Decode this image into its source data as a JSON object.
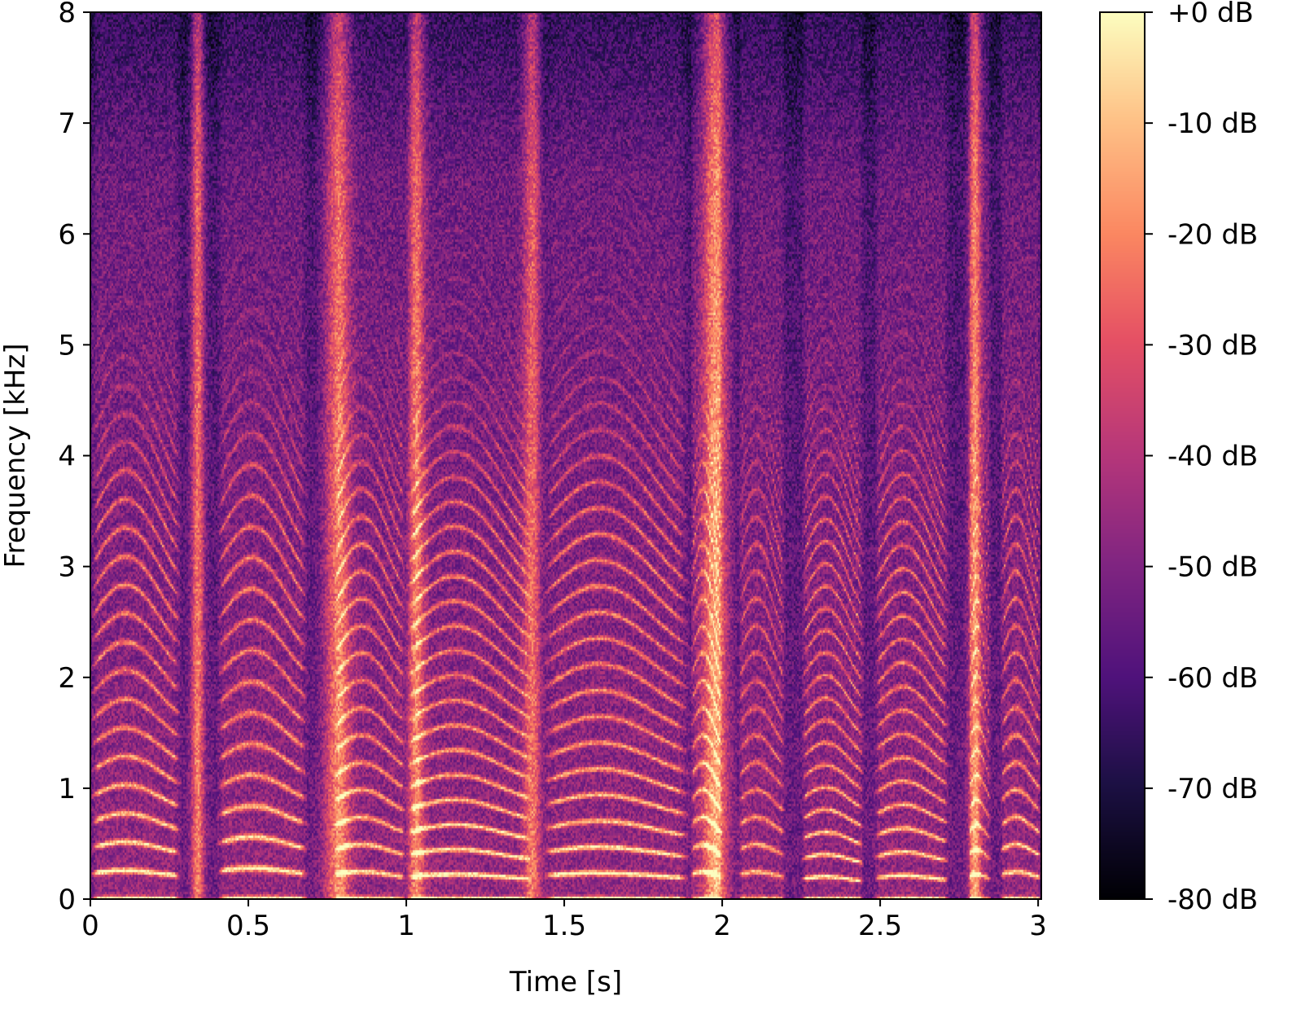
{
  "chart_data": [
    {
      "type": "heatmap",
      "subtype": "spectrogram",
      "title": "",
      "xlabel": "Time [s]",
      "ylabel": "Frequency [kHz]",
      "xlim": [
        0,
        3.01
      ],
      "ylim": [
        0,
        8
      ],
      "x_ticks": [
        0,
        0.5,
        1,
        1.5,
        2,
        2.5,
        3
      ],
      "x_tick_labels": [
        "0",
        "0.5",
        "1",
        "1.5",
        "2",
        "2.5",
        "3"
      ],
      "y_ticks": [
        0,
        1,
        2,
        3,
        4,
        5,
        6,
        7,
        8
      ],
      "y_tick_labels": [
        "0",
        "1",
        "2",
        "3",
        "4",
        "5",
        "6",
        "7",
        "8"
      ],
      "colormap": "magma",
      "grid": false,
      "voiced_segments": [
        {
          "start": 0.0,
          "end": 0.29,
          "f0_khz": 0.23,
          "strength": 0.95
        },
        {
          "start": 0.4,
          "end": 0.69,
          "f0_khz": 0.25,
          "strength": 0.92
        },
        {
          "start": 0.77,
          "end": 1.0,
          "f0_khz": 0.22,
          "strength": 0.85
        },
        {
          "start": 1.0,
          "end": 1.4,
          "f0_khz": 0.2,
          "strength": 0.95
        },
        {
          "start": 1.43,
          "end": 1.9,
          "f0_khz": 0.21,
          "strength": 0.95
        },
        {
          "start": 1.9,
          "end": 2.0,
          "f0_khz": 0.22,
          "strength": 0.75
        },
        {
          "start": 2.05,
          "end": 2.2,
          "f0_khz": 0.22,
          "strength": 0.7
        },
        {
          "start": 2.25,
          "end": 2.45,
          "f0_khz": 0.18,
          "strength": 0.9
        },
        {
          "start": 2.48,
          "end": 2.72,
          "f0_khz": 0.19,
          "strength": 0.9
        },
        {
          "start": 2.78,
          "end": 2.85,
          "f0_khz": 0.2,
          "strength": 0.6
        },
        {
          "start": 2.88,
          "end": 3.01,
          "f0_khz": 0.22,
          "strength": 0.85
        }
      ],
      "fricative_bands": [
        {
          "center": 0.34,
          "width": 0.03,
          "top_khz": 8.0,
          "strength": 0.75
        },
        {
          "center": 0.78,
          "width": 0.06,
          "top_khz": 8.0,
          "strength": 0.7
        },
        {
          "center": 1.03,
          "width": 0.04,
          "top_khz": 8.0,
          "strength": 0.65
        },
        {
          "center": 1.4,
          "width": 0.04,
          "top_khz": 8.0,
          "strength": 0.7
        },
        {
          "center": 1.98,
          "width": 0.06,
          "top_khz": 8.0,
          "strength": 0.78
        },
        {
          "center": 2.8,
          "width": 0.03,
          "top_khz": 8.0,
          "strength": 0.72
        }
      ]
    },
    {
      "type": "colorbar",
      "colormap": "magma",
      "range_db": [
        -80,
        0
      ],
      "ticks": [
        0,
        -10,
        -20,
        -30,
        -40,
        -50,
        -60,
        -70,
        -80
      ],
      "tick_labels": [
        "+0 dB",
        "-10 dB",
        "-20 dB",
        "-30 dB",
        "-40 dB",
        "-50 dB",
        "-60 dB",
        "-70 dB",
        "-80 dB"
      ]
    }
  ]
}
